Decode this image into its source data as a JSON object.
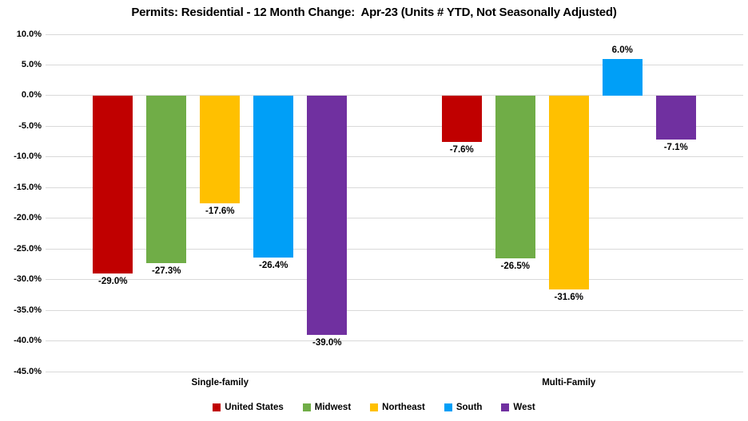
{
  "chart_data": {
    "type": "bar",
    "title": "Permits: Residential - 12 Month Change:  Apr-23 (Units # YTD, Not Seasonally Adjusted)",
    "categories": [
      "Single-family",
      "Multi-Family"
    ],
    "series": [
      {
        "name": "United States",
        "color": "#C00000",
        "values": [
          -29.0,
          -7.6
        ],
        "labels": [
          "-29.0%",
          "-7.6%"
        ]
      },
      {
        "name": "Midwest",
        "color": "#70AD47",
        "values": [
          -27.3,
          -26.5
        ],
        "labels": [
          "-27.3%",
          "-26.5%"
        ]
      },
      {
        "name": "Northeast",
        "color": "#FFC000",
        "values": [
          -17.6,
          -31.6
        ],
        "labels": [
          "-17.6%",
          "-31.6%"
        ]
      },
      {
        "name": "South",
        "color": "#009FF7",
        "values": [
          -26.4,
          6.0
        ],
        "labels": [
          "-26.4%",
          "6.0%"
        ]
      },
      {
        "name": "West",
        "color": "#7030A0",
        "values": [
          -39.0,
          -7.1
        ],
        "labels": [
          "-39.0%",
          "-7.1%"
        ]
      }
    ],
    "xlabel": "",
    "ylabel": "",
    "ylim": [
      -45,
      10
    ],
    "ytick_step": 5,
    "yticks": [
      "10.0%",
      "5.0%",
      "0.0%",
      "-5.0%",
      "-10.0%",
      "-15.0%",
      "-20.0%",
      "-25.0%",
      "-30.0%",
      "-35.0%",
      "-40.0%",
      "-45.0%"
    ],
    "grid": true,
    "gridline_color": "#D9D9D9",
    "background_color": "#FFFFFF",
    "text_color": "#000000",
    "legend_position": "bottom",
    "legend_entries": [
      "United States",
      "Midwest",
      "Northeast",
      "South",
      "West"
    ]
  }
}
